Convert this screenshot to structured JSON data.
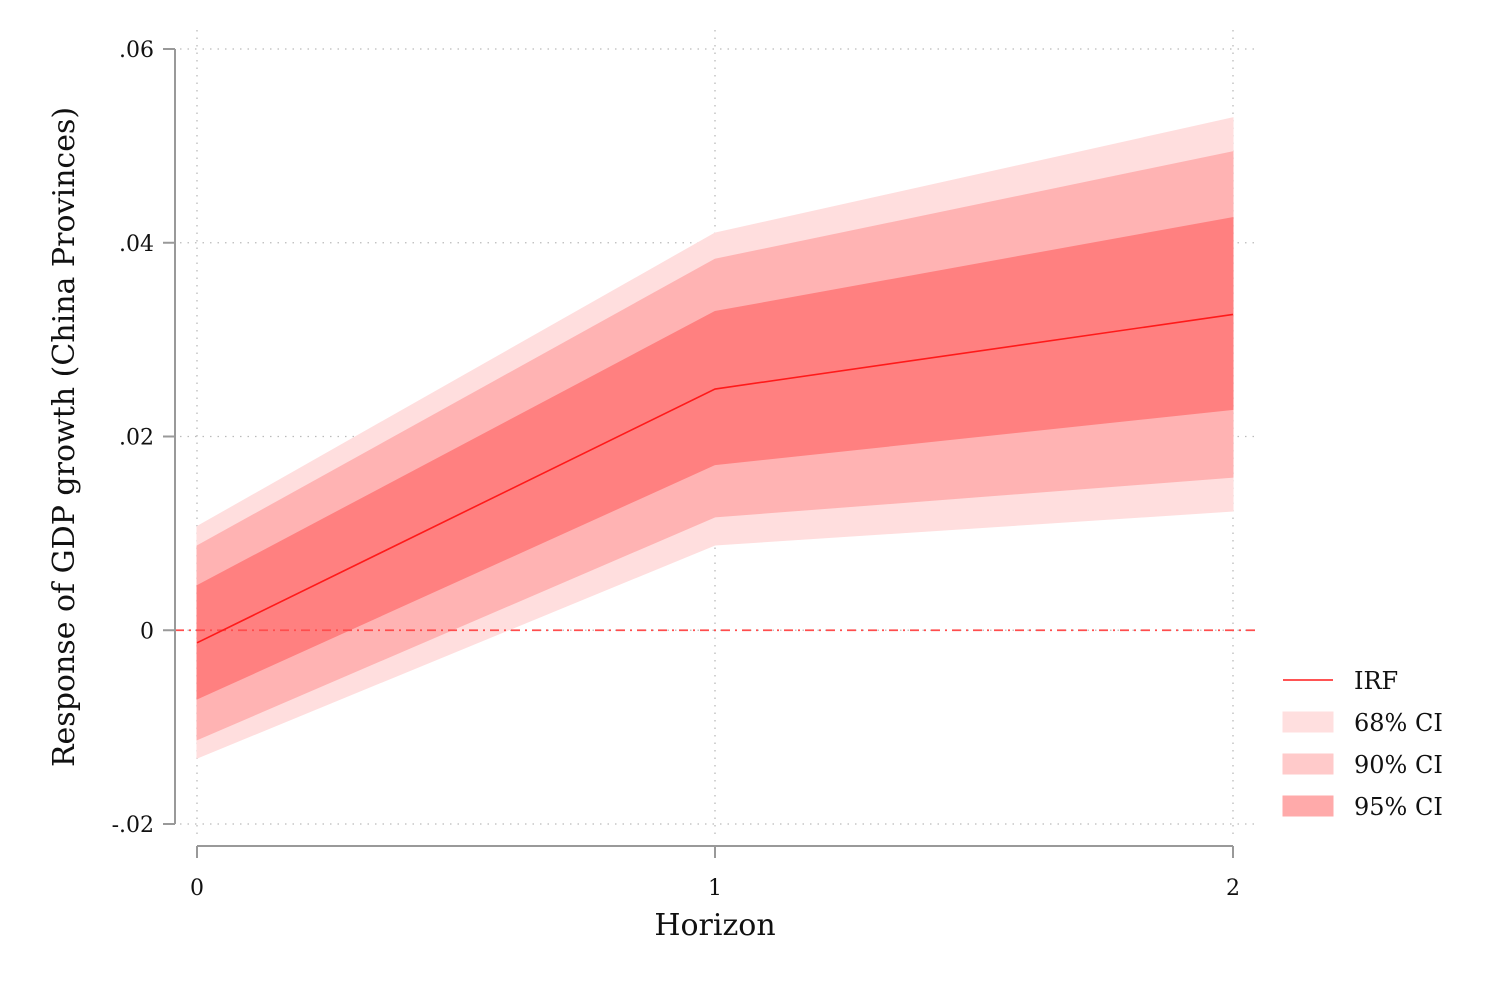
{
  "chart_data": {
    "type": "line",
    "title": "",
    "xlabel": "Horizon",
    "ylabel": "Response of GDP growth (China Provinces)",
    "x": [
      0,
      1,
      2
    ],
    "xticks": [
      "0",
      "1",
      "2"
    ],
    "yticks": [
      {
        "value": 0.06,
        "label": ".06"
      },
      {
        "value": 0.04,
        "label": ".04"
      },
      {
        "value": 0.02,
        "label": ".02"
      },
      {
        "value": 0,
        "label": "0"
      },
      {
        "value": -0.02,
        "label": "-.02"
      }
    ],
    "xlim": [
      0,
      2
    ],
    "ylim": [
      -0.02,
      0.06
    ],
    "grid": true,
    "reference_line": {
      "value": 0,
      "style": "dashed",
      "color": "#ff4d4d"
    },
    "legend_position": "right",
    "bands": [
      {
        "name": "68% CI",
        "lower": [
          -0.0132,
          0.0088,
          0.0123
        ],
        "upper": [
          0.0107,
          0.041,
          0.0529
        ],
        "color": "#ffdede",
        "legend_color": "#ffdfdf"
      },
      {
        "name": "90% CI",
        "lower": [
          -0.0113,
          0.0117,
          0.0158
        ],
        "upper": [
          0.0087,
          0.0383,
          0.0494
        ],
        "color": "#ffb3b3",
        "legend_color": "#ffcaca"
      },
      {
        "name": "95% CI",
        "lower": [
          -0.0071,
          0.0171,
          0.0228
        ],
        "upper": [
          0.0046,
          0.0329,
          0.0426
        ],
        "color": "#ff8080",
        "legend_color": "#ffaaaa"
      }
    ],
    "series": [
      {
        "name": "IRF",
        "values": [
          -0.0013,
          0.0249,
          0.0326
        ],
        "color": "#ff1a1a"
      }
    ]
  }
}
